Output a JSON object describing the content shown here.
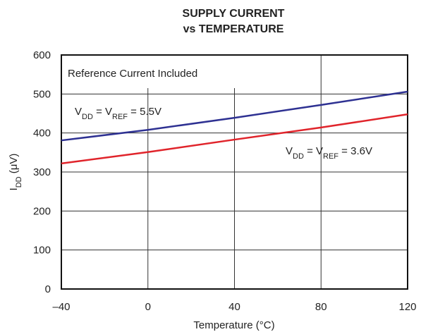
{
  "chart_data": {
    "type": "line",
    "title": [
      "SUPPLY CURRENT",
      "vs TEMPERATURE"
    ],
    "x_label": "Temperature (°C)",
    "y_label": [
      {
        "text": "I"
      },
      {
        "text": "DD",
        "sub": true
      },
      {
        "text": " (μV)"
      }
    ],
    "annotation": "Reference Current Included",
    "x": [
      -40,
      0,
      40,
      80,
      120
    ],
    "series": [
      {
        "label": [
          {
            "text": "V"
          },
          {
            "text": "DD",
            "sub": true
          },
          {
            "text": " = V"
          },
          {
            "text": "REF",
            "sub": true
          },
          {
            "text": " = 5.5V"
          }
        ],
        "color": "#2e3192",
        "values": [
          381,
          408,
          439,
          472,
          506
        ]
      },
      {
        "label": [
          {
            "text": "V"
          },
          {
            "text": "DD",
            "sub": true
          },
          {
            "text": " = V"
          },
          {
            "text": "REF",
            "sub": true
          },
          {
            "text": " = 3.6V"
          }
        ],
        "color": "#e0242b",
        "values": [
          322,
          351,
          383,
          414,
          448
        ]
      }
    ],
    "xlim": [
      -40,
      120
    ],
    "xticks": [
      {
        "value": -40,
        "label": "–40"
      },
      0,
      40,
      80,
      120
    ],
    "ylim": [
      0,
      600
    ],
    "yticks": [
      0,
      100,
      200,
      300,
      400,
      500,
      600
    ],
    "grid": true
  }
}
